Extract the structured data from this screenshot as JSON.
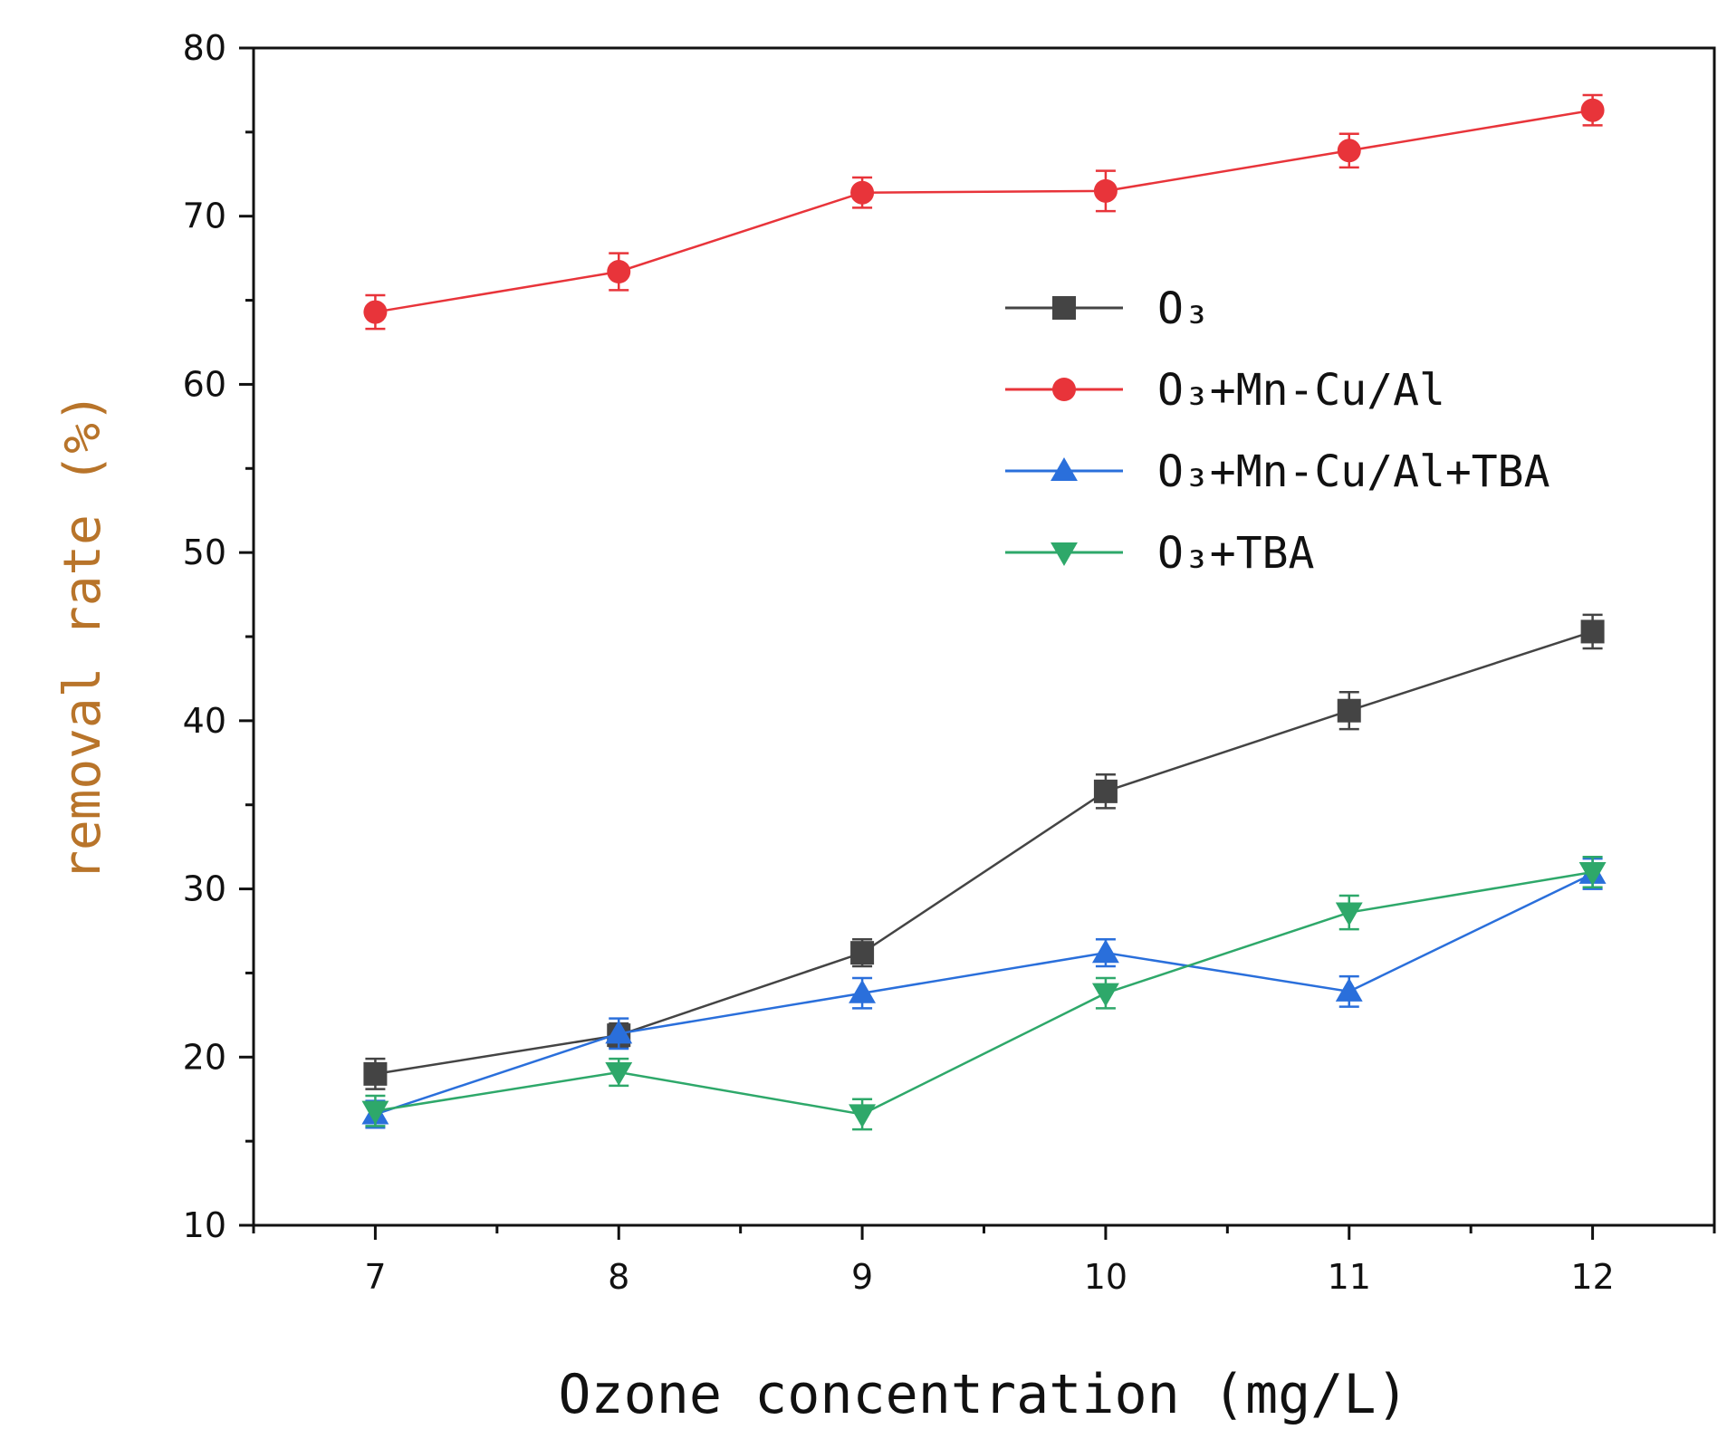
{
  "chart_data": {
    "type": "line",
    "title": "",
    "xlabel": "Ozone concentration (mg/L)",
    "ylabel": "removal rate (%)",
    "ylabel_color": "#b8742a",
    "x": [
      7,
      8,
      9,
      10,
      11,
      12
    ],
    "x_tick_labels": [
      "7",
      "8",
      "9",
      "10",
      "11",
      "12"
    ],
    "xlim": [
      6.5,
      12.5
    ],
    "ylim": [
      10,
      80
    ],
    "y_ticks": [
      10,
      20,
      30,
      40,
      50,
      60,
      70,
      80
    ],
    "y_tick_labels": [
      "10",
      "20",
      "30",
      "40",
      "50",
      "60",
      "70",
      "80"
    ],
    "grid": false,
    "legend_position": "upper-right",
    "series": [
      {
        "name": "O3",
        "label": "O₃",
        "color": "#444444",
        "marker": "square",
        "values": [
          19.0,
          21.3,
          26.2,
          35.8,
          40.6,
          45.3
        ],
        "errors": [
          0.9,
          0.7,
          0.8,
          1.0,
          1.1,
          1.0
        ]
      },
      {
        "name": "O3+Mn-Cu/Al",
        "label": "O₃+Mn-Cu/Al",
        "color": "#e8343a",
        "marker": "circle",
        "values": [
          64.3,
          66.7,
          71.4,
          71.5,
          73.9,
          76.3
        ],
        "errors": [
          1.0,
          1.1,
          0.9,
          1.2,
          1.0,
          0.9
        ]
      },
      {
        "name": "O3+Mn-Cu/Al+TBA",
        "label": "O₃+Mn-Cu/Al+TBA",
        "color": "#2a6fdb",
        "marker": "triangle-up",
        "values": [
          16.6,
          21.4,
          23.8,
          26.2,
          23.9,
          30.9
        ],
        "errors": [
          0.8,
          0.9,
          0.9,
          0.8,
          0.9,
          0.9
        ]
      },
      {
        "name": "O3+TBA",
        "label": "O₃+TBA",
        "color": "#2ea86a",
        "marker": "triangle-down",
        "values": [
          16.8,
          19.1,
          16.6,
          23.8,
          28.6,
          31.0
        ],
        "errors": [
          0.9,
          0.8,
          0.9,
          0.9,
          1.0,
          0.9
        ]
      }
    ]
  }
}
